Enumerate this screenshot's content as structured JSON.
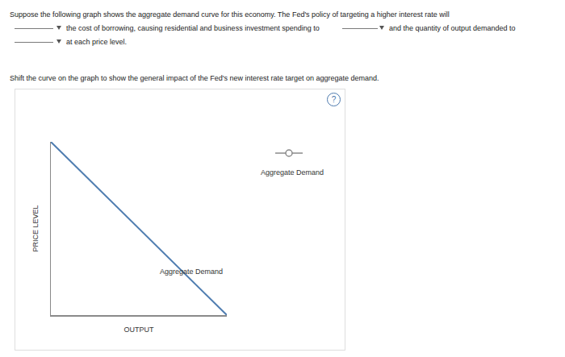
{
  "question": {
    "line1": "Suppose the following graph shows the aggregate demand curve for this economy. The Fed's policy of targeting a higher interest rate will",
    "after_blank1": "the cost of borrowing, causing residential and business investment spending to",
    "after_blank2": "and the quantity of output demanded to",
    "after_blank3": "at each price level."
  },
  "instruction": "Shift the curve on the graph to show the general impact of the Fed's new interest rate target on aggregate demand.",
  "help": "?",
  "palette_label": "Aggregate Demand",
  "chart_data": {
    "type": "line",
    "x": [
      0,
      10
    ],
    "series": [
      {
        "name": "Aggregate Demand",
        "color": "#4f7db0",
        "values": [
          10,
          0
        ]
      }
    ],
    "xlim": [
      0,
      10
    ],
    "ylim": [
      0,
      10
    ],
    "x_label": "OUTPUT",
    "y_label": "PRICE LEVEL",
    "tick_labels": false,
    "grid": false
  }
}
